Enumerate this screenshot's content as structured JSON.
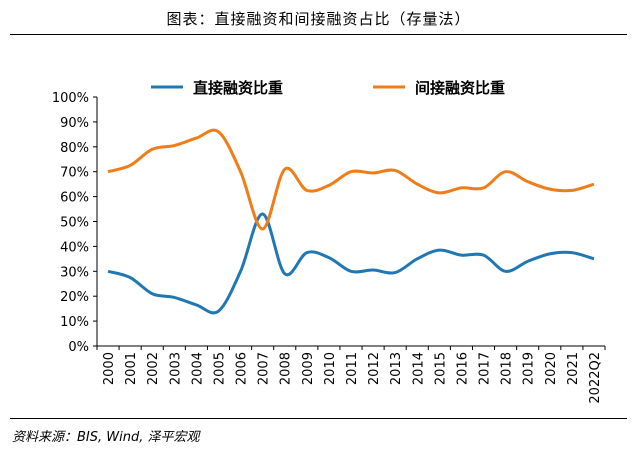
{
  "title": "图表：直接融资和间接融资占比（存量法）",
  "source": "资料来源：BIS, Wind, 泽平宏观",
  "colors": {
    "direct": "#1f77b4",
    "indirect": "#ef7d1a"
  },
  "chart_data": {
    "type": "line",
    "categories": [
      "2000",
      "2001",
      "2002",
      "2003",
      "2004",
      "2005",
      "2006",
      "2007",
      "2008",
      "2009",
      "2010",
      "2011",
      "2012",
      "2013",
      "2014",
      "2015",
      "2016",
      "2017",
      "2018",
      "2019",
      "2020",
      "2021",
      "2022Q2"
    ],
    "series": [
      {
        "name": "直接融资比重",
        "values": [
          30,
          27.5,
          21,
          19.5,
          16.5,
          14,
          30,
          53,
          29,
          37.5,
          35.5,
          30,
          30.5,
          29.5,
          35,
          38.5,
          36.5,
          36.5,
          30,
          34,
          37,
          37.5,
          35
        ]
      },
      {
        "name": "间接融资比重",
        "values": [
          70,
          72.5,
          79,
          80.5,
          83.5,
          86,
          70,
          47,
          71,
          62.5,
          64.5,
          70,
          69.5,
          70.5,
          65,
          61.5,
          63.5,
          63.5,
          70,
          66,
          63,
          62.5,
          65
        ]
      }
    ],
    "ylim": [
      0,
      100
    ],
    "yticks": [
      "0%",
      "10%",
      "20%",
      "30%",
      "40%",
      "50%",
      "60%",
      "70%",
      "80%",
      "90%",
      "100%"
    ],
    "legend_position": "top",
    "grid": false
  }
}
